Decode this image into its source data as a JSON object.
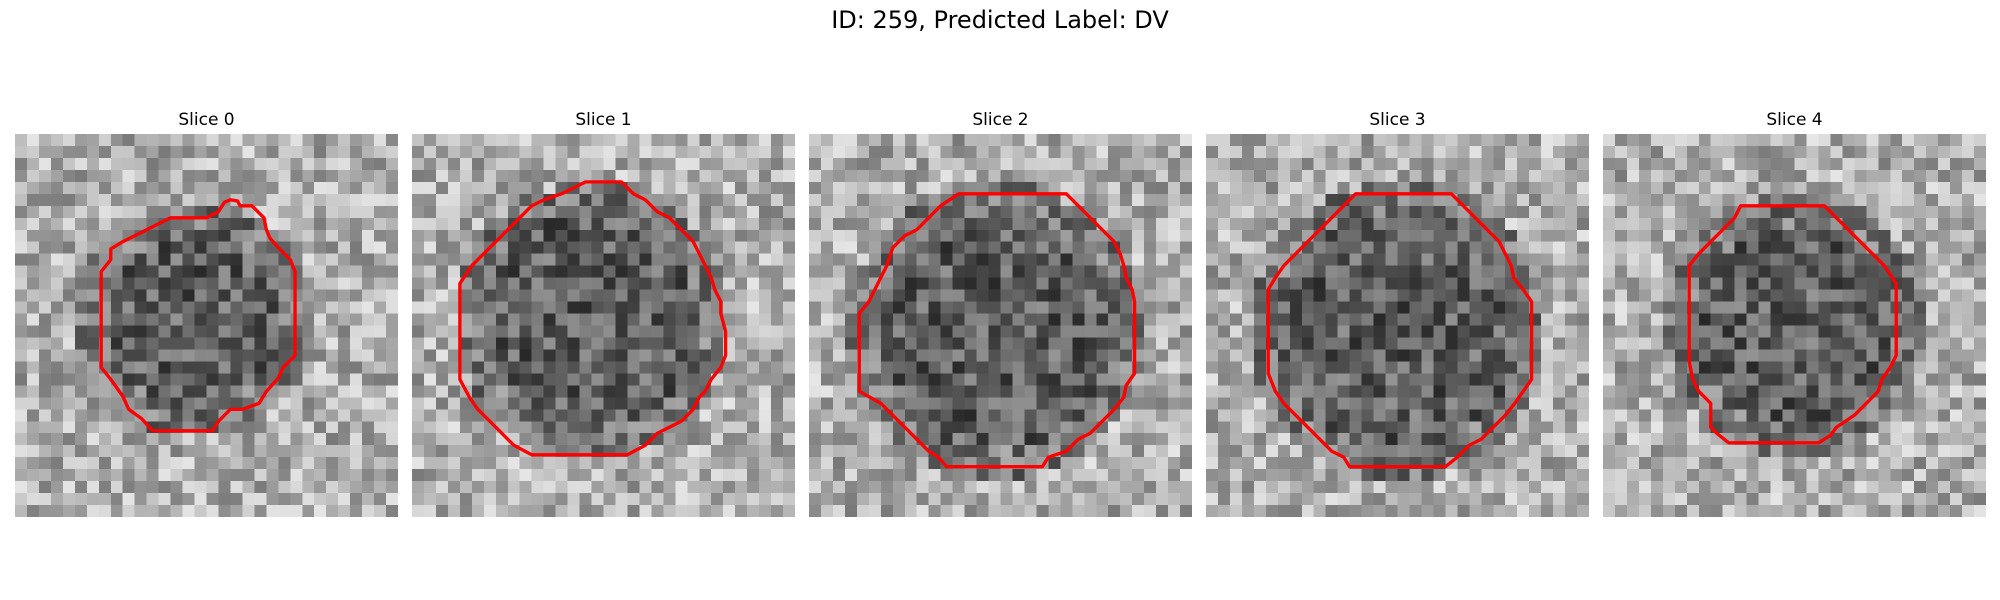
{
  "figure": {
    "title": "ID: 259, Predicted Label: DV"
  },
  "contour_color": "#ff0000",
  "slices": [
    {
      "label": "Slice 0"
    },
    {
      "label": "Slice 1"
    },
    {
      "label": "Slice 2"
    },
    {
      "label": "Slice 3"
    },
    {
      "label": "Slice 4"
    }
  ]
}
